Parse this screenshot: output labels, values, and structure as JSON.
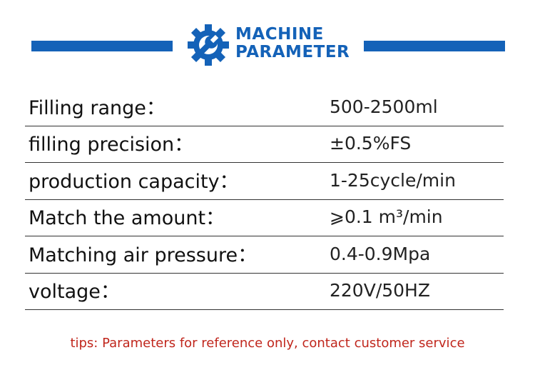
{
  "header": {
    "title_lines": [
      "MACHINE",
      "PARAMETER"
    ]
  },
  "table": {
    "rows": [
      [
        "Filling range：",
        "500-2500ml"
      ],
      [
        "filling precision：",
        "±0.5%FS"
      ],
      [
        "production capacity：",
        "1-25cycle/min"
      ],
      [
        "Match the amount：",
        "⩾0.1 m³/min"
      ],
      [
        "Matching air pressure：",
        "0.4-0.9Mpa"
      ],
      [
        "voltage：",
        "220V/50HZ"
      ]
    ]
  },
  "tips": "tips: Parameters for reference only, contact customer service"
}
